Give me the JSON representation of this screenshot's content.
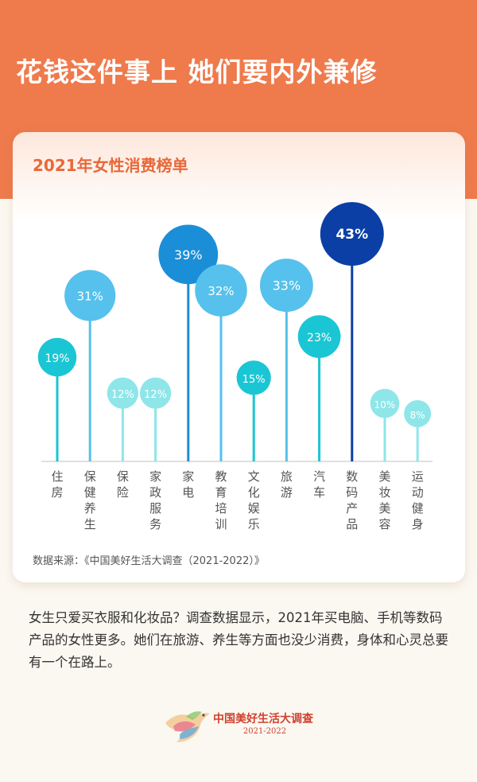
{
  "header": {
    "title": "花钱这件事上  她们要内外兼修"
  },
  "card": {
    "title": "2021年女性消费榜单",
    "source": "数据来源：《中国美好生活大调查（2021-2022）》"
  },
  "chart_data": {
    "type": "bubble-lollipop",
    "title": "2021年女性消费榜单",
    "categories": [
      "住房",
      "保健养生",
      "保险",
      "家政服务",
      "家电",
      "教育培训",
      "文化娱乐",
      "旅游",
      "汽车",
      "数码产品",
      "美妆美容",
      "运动健身"
    ],
    "values": [
      19,
      31,
      12,
      12,
      39,
      32,
      15,
      33,
      23,
      43,
      10,
      8
    ],
    "labels": [
      "19%",
      "31%",
      "12%",
      "12%",
      "39%",
      "32%",
      "15%",
      "33%",
      "23%",
      "43%",
      "10%",
      "8%"
    ],
    "unit": "%",
    "colors": {
      "teal": "#1ac6d4",
      "sky": "#56c1ec",
      "pale": "#8ee6e9",
      "blue": "#1b8ed8",
      "navy": "#0b3fa6",
      "axis": "#d6d6d6"
    },
    "point_colors": [
      "teal",
      "sky",
      "pale",
      "pale",
      "blue",
      "sky",
      "teal",
      "sky",
      "teal",
      "navy",
      "pale",
      "pale"
    ]
  },
  "description": "女生只爱买衣服和化妆品？调查数据显示，2021年买电脑、手机等数码产品的女性更多。她们在旅游、养生等方面也没少消费，身体和心灵总要有一个在路上。",
  "footer": {
    "name": "中国美好生活大调查",
    "years": "2021-2022",
    "logo_icon": "dove-logo-icon"
  }
}
